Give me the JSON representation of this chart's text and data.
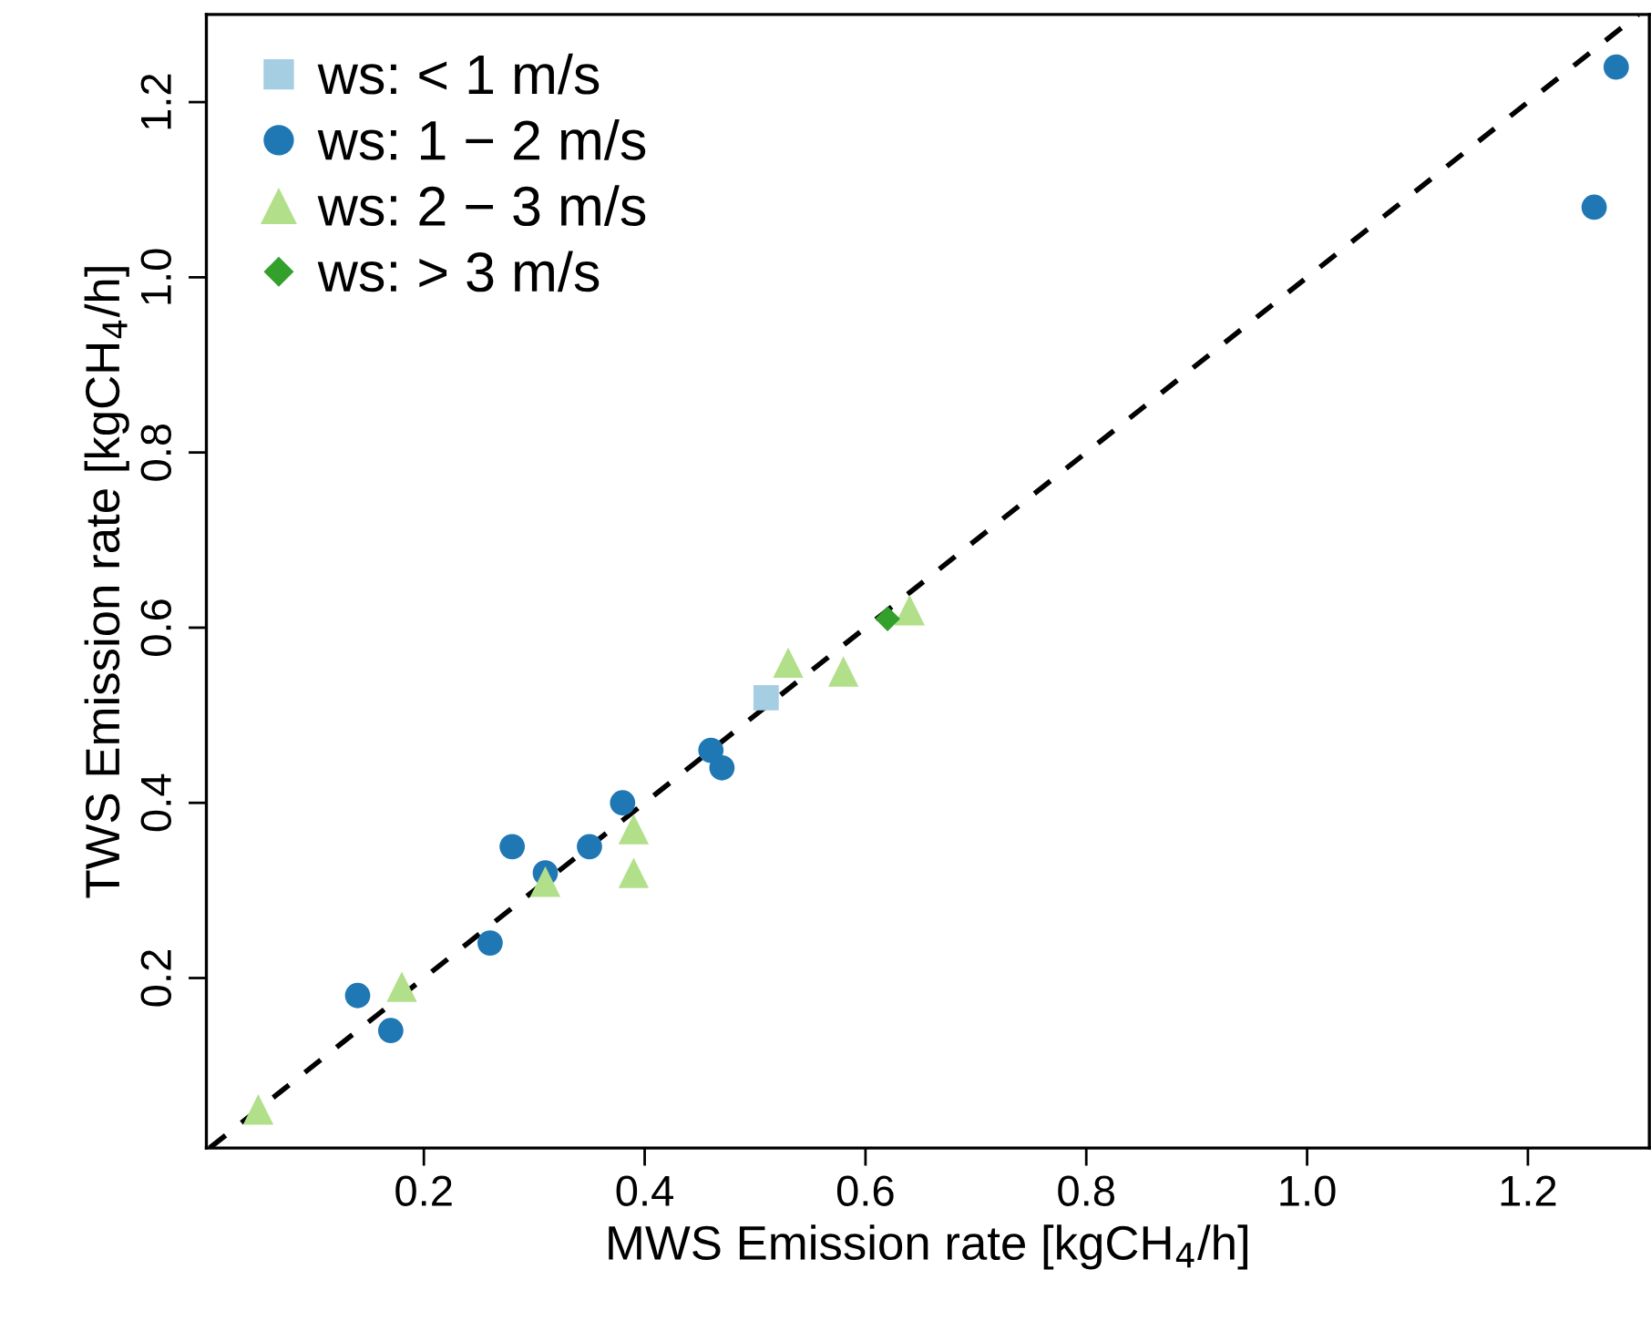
{
  "chart_data": {
    "type": "scatter",
    "xlabel": "MWS Emission rate [kgCH$_{4}$/h]",
    "ylabel": "TWS Emission rate [kgCH$_{4}$/h]",
    "xlim": [
      0.003,
      1.31
    ],
    "ylim": [
      0.006,
      1.3
    ],
    "xticks": [
      0.2,
      0.4,
      0.6,
      0.8,
      {
        "value": 1,
        "label": "1.0"
      },
      1.2
    ],
    "yticks": [
      0.2,
      0.4,
      0.6,
      0.8,
      {
        "value": 1,
        "label": "1.0"
      },
      1.2
    ],
    "grid": false,
    "legend": "top left",
    "series": [
      {
        "type": "line",
        "line_style": "dashed",
        "marker": "none",
        "color": "#000000",
        "x": [
          0.006,
          1.3
        ],
        "values": [
          0.006,
          1.3
        ]
      },
      {
        "name": "ws: < 1 m/s",
        "marker": "square",
        "color": "#a6cee3",
        "x": [
          0.51
        ],
        "values": [
          0.52
        ]
      },
      {
        "name": "ws: 1 − 2 m/s",
        "marker": "circle",
        "color": "#1f78b4",
        "x": [
          0.14,
          0.17,
          0.26,
          0.28,
          0.31,
          0.35,
          0.38,
          0.46,
          0.47,
          1.28,
          1.26
        ],
        "values": [
          0.18,
          0.14,
          0.24,
          0.35,
          0.32,
          0.35,
          0.4,
          0.46,
          0.44,
          1.24,
          1.08
        ]
      },
      {
        "name": "ws: 2 − 3 m/s",
        "marker": "triangle",
        "color": "#b2df8a",
        "x": [
          0.05,
          0.18,
          0.31,
          0.39,
          0.39,
          0.53,
          0.58,
          0.64
        ],
        "values": [
          0.05,
          0.19,
          0.31,
          0.37,
          0.32,
          0.56,
          0.55,
          0.62
        ]
      },
      {
        "name": "ws: > 3 m/s",
        "marker": "diamond",
        "color": "#33a02c",
        "x": [
          0.62
        ],
        "values": [
          0.61
        ]
      }
    ]
  }
}
